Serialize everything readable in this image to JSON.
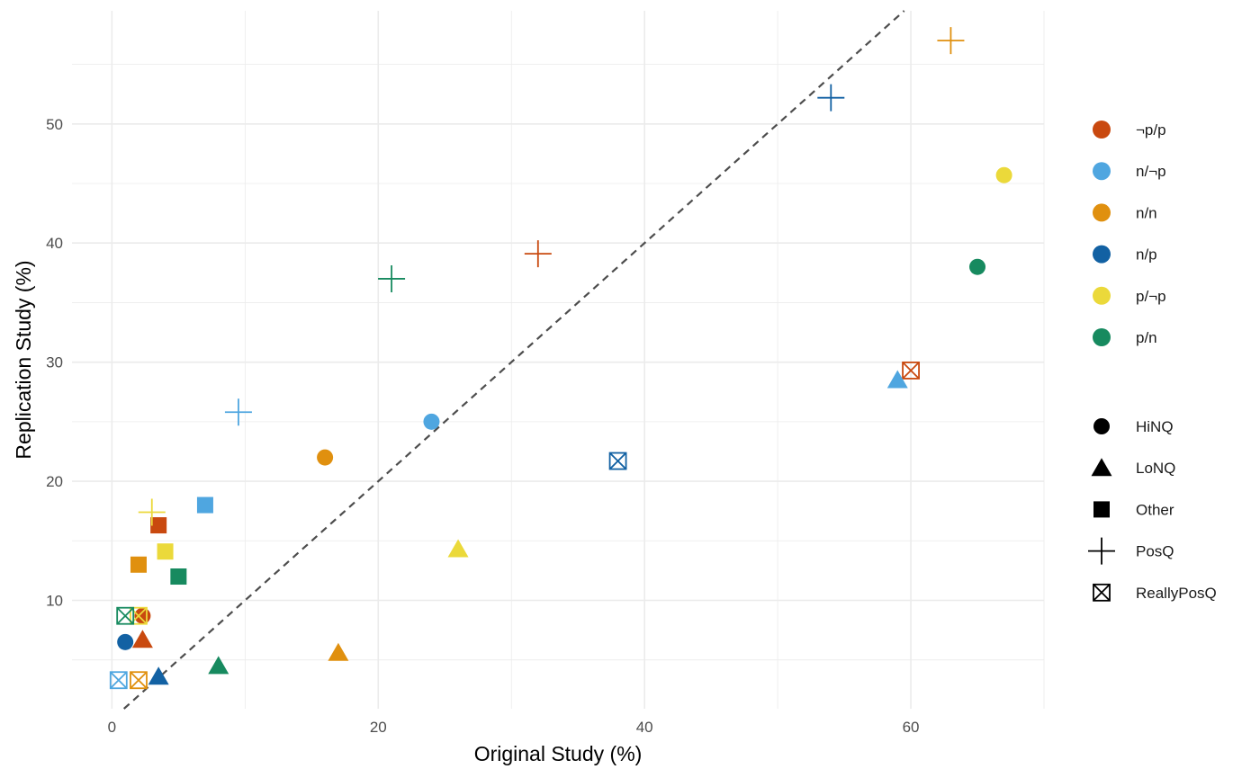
{
  "chart_data": {
    "type": "scatter",
    "xlabel": "Original Study (%)",
    "ylabel": "Replication Study (%)",
    "xlim": [
      -3,
      70
    ],
    "ylim": [
      0.9,
      59.5
    ],
    "x_ticks": [
      0,
      20,
      40,
      60
    ],
    "y_ticks": [
      10,
      20,
      30,
      40,
      50
    ],
    "x_tick_labels": [
      "0",
      "20",
      "40",
      "60"
    ],
    "y_tick_labels": [
      "10",
      "20",
      "30",
      "40",
      "50"
    ],
    "grid": "major and minor",
    "reference_line": {
      "type": "identity",
      "style": "dashed",
      "color": "#4d4d4d"
    },
    "legend_position": "right",
    "color_legend": [
      {
        "key": "np_p",
        "label": "¬p/p",
        "color": "#c9490f"
      },
      {
        "key": "n_np",
        "label": "n/¬p",
        "color": "#4fa6e0"
      },
      {
        "key": "n_n",
        "label": "n/n",
        "color": "#e0900f"
      },
      {
        "key": "n_p",
        "label": "n/p",
        "color": "#1261a3"
      },
      {
        "key": "p_np",
        "label": "p/¬p",
        "color": "#ebd93a"
      },
      {
        "key": "p_n",
        "label": "p/n",
        "color": "#178a5f"
      }
    ],
    "shape_legend": [
      {
        "key": "circle",
        "label": "HiNQ"
      },
      {
        "key": "triangle",
        "label": "LoNQ"
      },
      {
        "key": "square",
        "label": "Other"
      },
      {
        "key": "plus",
        "label": "PosQ"
      },
      {
        "key": "boxx",
        "label": "ReallyPosQ"
      }
    ],
    "points": [
      {
        "x": 2.3,
        "y": 8.7,
        "color": "np_p",
        "shape": "circle"
      },
      {
        "x": 2.3,
        "y": 6.7,
        "color": "np_p",
        "shape": "triangle"
      },
      {
        "x": 3.5,
        "y": 16.3,
        "color": "np_p",
        "shape": "square"
      },
      {
        "x": 32,
        "y": 39.1,
        "color": "np_p",
        "shape": "plus"
      },
      {
        "x": 60,
        "y": 29.3,
        "color": "np_p",
        "shape": "boxx"
      },
      {
        "x": 24,
        "y": 25,
        "color": "n_np",
        "shape": "circle"
      },
      {
        "x": 59,
        "y": 28.5,
        "color": "n_np",
        "shape": "triangle"
      },
      {
        "x": 7,
        "y": 18,
        "color": "n_np",
        "shape": "square"
      },
      {
        "x": 9.5,
        "y": 25.8,
        "color": "n_np",
        "shape": "plus"
      },
      {
        "x": 0.5,
        "y": 3.3,
        "color": "n_np",
        "shape": "boxx"
      },
      {
        "x": 16,
        "y": 22,
        "color": "n_n",
        "shape": "circle"
      },
      {
        "x": 17,
        "y": 5.6,
        "color": "n_n",
        "shape": "triangle"
      },
      {
        "x": 2,
        "y": 13,
        "color": "n_n",
        "shape": "square"
      },
      {
        "x": 63,
        "y": 57,
        "color": "n_n",
        "shape": "plus"
      },
      {
        "x": 2,
        "y": 3.3,
        "color": "n_n",
        "shape": "boxx"
      },
      {
        "x": 1,
        "y": 6.5,
        "color": "n_p",
        "shape": "circle"
      },
      {
        "x": 3.5,
        "y": 3.6,
        "color": "n_p",
        "shape": "triangle"
      },
      {
        "x": 54,
        "y": 52.2,
        "color": "n_p",
        "shape": "plus"
      },
      {
        "x": 38,
        "y": 21.7,
        "color": "n_p",
        "shape": "boxx"
      },
      {
        "x": 67,
        "y": 45.7,
        "color": "p_np",
        "shape": "circle"
      },
      {
        "x": 26,
        "y": 14.3,
        "color": "p_np",
        "shape": "triangle"
      },
      {
        "x": 4,
        "y": 14.1,
        "color": "p_np",
        "shape": "square"
      },
      {
        "x": 3,
        "y": 17.4,
        "color": "p_np",
        "shape": "plus"
      },
      {
        "x": 2,
        "y": 8.7,
        "color": "p_np",
        "shape": "boxx"
      },
      {
        "x": 65,
        "y": 38,
        "color": "p_n",
        "shape": "circle"
      },
      {
        "x": 8,
        "y": 4.5,
        "color": "p_n",
        "shape": "triangle"
      },
      {
        "x": 5,
        "y": 12,
        "color": "p_n",
        "shape": "square"
      },
      {
        "x": 21,
        "y": 37,
        "color": "p_n",
        "shape": "plus"
      },
      {
        "x": 1,
        "y": 8.7,
        "color": "p_n",
        "shape": "boxx"
      }
    ]
  }
}
